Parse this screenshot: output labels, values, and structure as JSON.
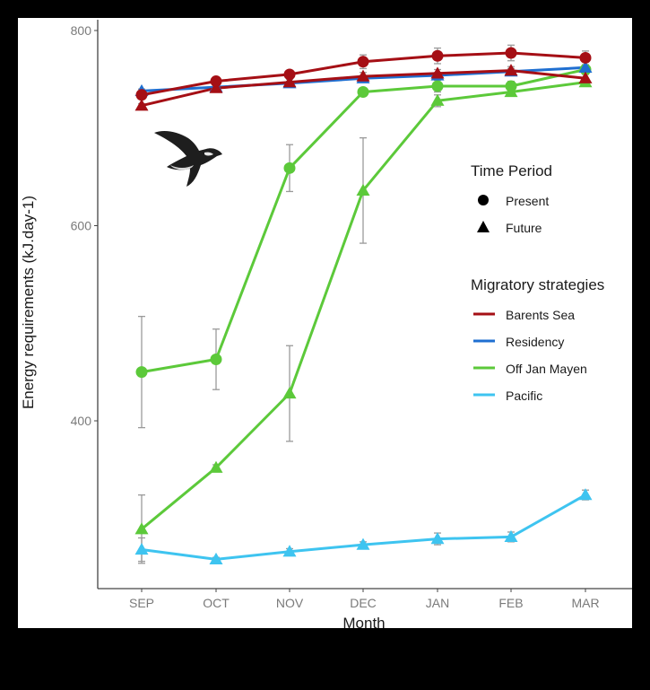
{
  "chart_data": {
    "type": "line",
    "title": "",
    "xlabel": "Month",
    "ylabel": "Energy requirements (kJ.day-1)",
    "categories": [
      "SEP",
      "OCT",
      "NOV",
      "DEC",
      "JAN",
      "FEB",
      "MAR"
    ],
    "ylim": [
      229,
      808
    ],
    "yticks": [
      400,
      600,
      800
    ],
    "grid": false,
    "legend_position": "right-inside",
    "legends": {
      "time_period": {
        "title": "Time Period",
        "entries": [
          {
            "label": "Present",
            "shape": "circle"
          },
          {
            "label": "Future",
            "shape": "triangle"
          }
        ]
      },
      "migratory_strategies": {
        "title": "Migratory strategies",
        "entries": [
          {
            "label": "Barents Sea",
            "color": "#a50f15"
          },
          {
            "label": "Residency",
            "color": "#1f6fd1"
          },
          {
            "label": "Off Jan Mayen",
            "color": "#5cc93a"
          },
          {
            "label": "Pacific",
            "color": "#3ec4f0"
          }
        ]
      }
    },
    "series": [
      {
        "name": "Barents Sea - Present",
        "strategy": "Barents Sea",
        "period": "Present",
        "color": "#a50f15",
        "shape": "circle",
        "values": [
          734,
          748,
          755,
          768,
          774,
          777,
          772
        ],
        "err": [
          3,
          3,
          4,
          7,
          8,
          8,
          7
        ]
      },
      {
        "name": "Barents Sea - Future",
        "strategy": "Barents Sea",
        "period": "Future",
        "color": "#a50f15",
        "shape": "triangle",
        "values": [
          723,
          741,
          747,
          753,
          756,
          759,
          751
        ],
        "err": [
          2,
          2,
          3,
          4,
          4,
          4,
          4
        ]
      },
      {
        "name": "Residency - Future",
        "strategy": "Residency",
        "period": "Future",
        "color": "#1f6fd1",
        "shape": "triangle",
        "values": [
          738,
          742,
          746,
          751,
          754,
          758,
          762
        ],
        "err": [
          2,
          2,
          2,
          3,
          3,
          3,
          3
        ]
      },
      {
        "name": "Off Jan Mayen - Present",
        "strategy": "Off Jan Mayen",
        "period": "Present",
        "color": "#5cc93a",
        "shape": "circle",
        "values": [
          450,
          463,
          659,
          737,
          743,
          743,
          760
        ],
        "err": [
          57,
          31,
          24,
          3,
          6,
          5,
          4
        ]
      },
      {
        "name": "Off Jan Mayen - Future",
        "strategy": "Off Jan Mayen",
        "period": "Future",
        "color": "#5cc93a",
        "shape": "triangle",
        "values": [
          289,
          352,
          428,
          636,
          728,
          737,
          747
        ],
        "err": [
          35,
          3,
          49,
          54,
          6,
          4,
          4
        ]
      },
      {
        "name": "Pacific - Future",
        "strategy": "Pacific",
        "period": "Future",
        "color": "#3ec4f0",
        "shape": "triangle",
        "values": [
          268,
          258,
          266,
          273,
          279,
          281,
          324
        ],
        "err": [
          12,
          2,
          3,
          3,
          6,
          5,
          5
        ]
      }
    ]
  },
  "illustration": {
    "name": "flying-seabird-image"
  }
}
